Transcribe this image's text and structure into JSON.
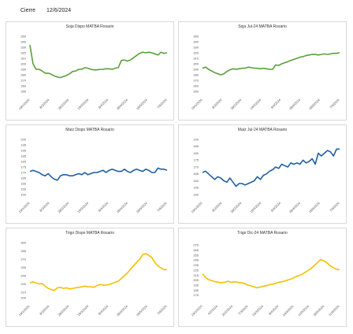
{
  "header": {
    "label": "Cierre",
    "date": "12/6/2024"
  },
  "chart_data": [
    {
      "type": "line",
      "title": "Soja Dispo MATBA Rosario",
      "color": "#5a9f3a",
      "ylim": [
        250,
        350
      ],
      "yticks": [
        350,
        340,
        330,
        320,
        310,
        300,
        290,
        280,
        270,
        260,
        250
      ],
      "xticks": [
        "19/1/2024",
        "8/2/2024",
        "28/2/2024",
        "19/3/2024",
        "8/4/2024",
        "28/4/2024",
        "18/5/2024",
        "7/6/2024"
      ],
      "series": [
        {
          "values": [
            334,
            300,
            290,
            290,
            287,
            283,
            283,
            281,
            278,
            276,
            275,
            277,
            279,
            282,
            286,
            287,
            290,
            290,
            293,
            292,
            290,
            289,
            289,
            290,
            290,
            291,
            291,
            290,
            292,
            293,
            306,
            307,
            305,
            307,
            311,
            315,
            319,
            321,
            320,
            321,
            320,
            318,
            316,
            321,
            319,
            320
          ]
        }
      ]
    },
    {
      "type": "line",
      "title": "Soja Jul-24 MATBA Rosario",
      "color": "#5a9f3a",
      "ylim": [
        250,
        350
      ],
      "yticks": [
        350,
        340,
        330,
        320,
        310,
        300,
        290,
        280,
        270,
        260,
        250
      ],
      "xticks": [
        "19/1/2024",
        "8/2/2024",
        "28/2/2024",
        "19/3/2024",
        "8/4/2024",
        "28/4/2024",
        "18/5/2024",
        "7/6/2024"
      ],
      "series": [
        {
          "values": [
            292,
            294,
            290,
            287,
            284,
            282,
            280,
            282,
            286,
            289,
            291,
            290,
            291,
            292,
            292,
            294,
            293,
            292,
            292,
            291,
            292,
            291,
            290,
            290,
            298,
            297,
            300,
            302,
            304,
            306,
            308,
            310,
            312,
            313,
            315,
            316,
            317,
            317,
            316,
            317,
            318,
            317,
            318,
            319,
            319,
            320
          ]
        }
      ]
    },
    {
      "type": "line",
      "title": "Maíz Dispo MATBA Rosario",
      "color": "#1f5fa5",
      "ylim": [
        150,
        200
      ],
      "yticks": [
        200,
        195,
        190,
        185,
        180,
        175,
        170,
        165,
        160,
        155,
        150
      ],
      "xticks": [
        "19/1/2024",
        "8/2/2024",
        "28/2/2024",
        "19/3/2024",
        "8/4/2024",
        "28/4/2024",
        "18/5/2024",
        "7/6/2024"
      ],
      "series": [
        {
          "values": [
            171,
            172,
            171,
            170,
            168,
            167,
            169,
            166,
            164,
            163,
            167,
            168,
            168,
            167,
            167,
            168,
            169,
            168,
            170,
            168,
            169,
            170,
            170,
            171,
            172,
            170,
            172,
            173,
            172,
            171,
            171,
            173,
            171,
            170,
            172,
            173,
            172,
            171,
            173,
            172,
            170,
            170,
            174,
            173,
            173,
            172
          ]
        }
      ]
    },
    {
      "type": "line",
      "title": "Maíz Jul-24 MATBA Rosario",
      "color": "#1f5fa5",
      "ylim": [
        150,
        190
      ],
      "yticks": [
        190,
        185,
        180,
        175,
        170,
        165,
        160,
        155,
        150
      ],
      "xticks": [
        "19/1/2024",
        "8/2/2024",
        "28/2/2024",
        "19/3/2024",
        "8/4/2024",
        "28/4/2024",
        "18/5/2024",
        "7/6/2024"
      ],
      "series": [
        {
          "values": [
            166,
            167,
            165,
            163,
            161,
            163,
            162,
            160,
            159,
            162,
            159,
            156,
            158,
            158,
            157,
            158,
            159,
            160,
            163,
            161,
            164,
            165,
            167,
            168,
            170,
            169,
            172,
            171,
            170,
            173,
            172,
            173,
            172,
            175,
            173,
            174,
            176,
            172,
            180,
            178,
            180,
            182,
            181,
            178,
            183,
            183
          ]
        }
      ]
    },
    {
      "type": "line",
      "title": "Trigo Dispo MATBA Rosario",
      "color": "#f5c000",
      "ylim": [
        200,
        300
      ],
      "yticks": [
        300,
        285,
        270,
        255,
        240,
        225,
        210,
        200
      ],
      "xticks": [
        "19/1/2024",
        "8/2/2024",
        "28/2/2024",
        "19/3/2024",
        "8/4/2024",
        "28/4/2024",
        "18/5/2024",
        "7/6/2024"
      ],
      "series": [
        {
          "values": [
            227,
            229,
            227,
            225,
            226,
            221,
            217,
            215,
            213,
            218,
            219,
            217,
            218,
            216,
            217,
            218,
            219,
            220,
            221,
            220,
            220,
            219,
            222,
            224,
            223,
            223,
            224,
            226,
            228,
            230,
            235,
            240,
            245,
            252,
            258,
            264,
            270,
            278,
            280,
            277,
            273,
            264,
            258,
            254,
            251,
            251
          ]
        }
      ]
    },
    {
      "type": "line",
      "title": "Trigo Dic-24 MATBA Rosario",
      "color": "#f5c000",
      "ylim": [
        170,
        280
      ],
      "yticks": [
        275,
        265,
        255,
        245,
        235,
        225,
        215,
        205,
        195,
        185,
        175
      ],
      "xticks": [
        "19/1/2024",
        "4/2/2024",
        "20/2/2024",
        "7/3/2024",
        "23/3/2024",
        "8/4/2024",
        "24/4/2024",
        "10/5/2024",
        "26/5/2024",
        "11/6/2024"
      ],
      "series": [
        {
          "values": [
            218,
            210,
            206,
            204,
            202,
            201,
            200,
            201,
            203,
            201,
            202,
            201,
            200,
            199,
            196,
            194,
            192,
            190,
            191,
            193,
            194,
            196,
            197,
            199,
            201,
            202,
            204,
            206,
            208,
            211,
            214,
            216,
            220,
            224,
            228,
            234,
            240,
            246,
            244,
            240,
            234,
            230,
            227,
            226
          ]
        }
      ]
    }
  ]
}
